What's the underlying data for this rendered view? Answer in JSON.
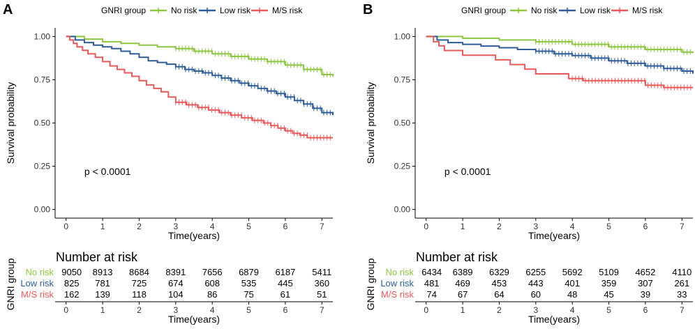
{
  "colors": {
    "no_risk": "#8CC63F",
    "low_risk": "#2E5C99",
    "ms_risk": "#E8595A",
    "axis": "#000000"
  },
  "chart_data": [
    {
      "type": "line",
      "panel_label": "A",
      "title": "",
      "xlabel": "Time(years)",
      "ylabel": "Survival probability",
      "xlim": [
        -0.3,
        7.3
      ],
      "ylim": [
        -0.05,
        1.05
      ],
      "x_ticks": [
        "0",
        "1",
        "2",
        "3",
        "4",
        "5",
        "6",
        "7"
      ],
      "y_ticks": [
        "0.00",
        "0.25",
        "0.50",
        "0.75",
        "1.00"
      ],
      "legend": {
        "title": "GNRI group",
        "placement": "top",
        "items": [
          "No risk",
          "Low risk",
          "M/S risk"
        ]
      },
      "annotation": "p < 0.0001",
      "series": [
        {
          "name": "No risk",
          "color_key": "no_risk",
          "x": [
            0,
            0.5,
            1,
            1.5,
            2,
            2.5,
            3,
            3.5,
            4,
            4.5,
            5,
            5.5,
            6,
            6.5,
            7,
            7.3
          ],
          "y": [
            1.0,
            0.985,
            0.97,
            0.96,
            0.95,
            0.94,
            0.93,
            0.915,
            0.9,
            0.885,
            0.87,
            0.855,
            0.835,
            0.81,
            0.78,
            0.77
          ],
          "censor_from": 3
        },
        {
          "name": "Low risk",
          "color_key": "low_risk",
          "x": [
            0,
            0.25,
            0.5,
            0.75,
            1,
            1.25,
            1.5,
            1.75,
            2,
            2.25,
            2.5,
            2.75,
            3,
            3.25,
            3.5,
            3.75,
            4,
            4.25,
            4.5,
            4.75,
            5,
            5.25,
            5.5,
            5.75,
            6,
            6.25,
            6.5,
            6.75,
            7,
            7.3
          ],
          "y": [
            1.0,
            0.98,
            0.965,
            0.95,
            0.94,
            0.93,
            0.915,
            0.9,
            0.88,
            0.86,
            0.85,
            0.84,
            0.825,
            0.81,
            0.8,
            0.79,
            0.775,
            0.76,
            0.745,
            0.73,
            0.715,
            0.7,
            0.685,
            0.67,
            0.65,
            0.63,
            0.61,
            0.585,
            0.56,
            0.545
          ],
          "censor_from": 3
        },
        {
          "name": "M/S risk",
          "color_key": "ms_risk",
          "x": [
            0,
            0.1,
            0.2,
            0.3,
            0.45,
            0.6,
            0.8,
            1.0,
            1.2,
            1.4,
            1.6,
            1.8,
            2.0,
            2.2,
            2.4,
            2.6,
            2.8,
            3.0,
            3.3,
            3.6,
            3.9,
            4.2,
            4.5,
            4.8,
            5.1,
            5.4,
            5.6,
            5.8,
            6.0,
            6.2,
            6.4,
            6.6,
            7.0,
            7.3
          ],
          "y": [
            1.0,
            0.98,
            0.96,
            0.94,
            0.92,
            0.9,
            0.88,
            0.855,
            0.83,
            0.81,
            0.79,
            0.77,
            0.745,
            0.72,
            0.7,
            0.68,
            0.65,
            0.62,
            0.605,
            0.59,
            0.575,
            0.56,
            0.545,
            0.53,
            0.515,
            0.5,
            0.485,
            0.47,
            0.455,
            0.44,
            0.43,
            0.415,
            0.415,
            0.415
          ],
          "censor_from": 3
        }
      ],
      "risk_table": {
        "title": "Number at risk",
        "group_label": "GNRI group",
        "xlabel": "Time(years)",
        "rows": [
          {
            "name": "No risk",
            "color_key": "no_risk",
            "values": [
              "9050",
              "8913",
              "8684",
              "8391",
              "7656",
              "6879",
              "6187",
              "5411"
            ]
          },
          {
            "name": "Low risk",
            "color_key": "low_risk",
            "values": [
              "825",
              "781",
              "725",
              "674",
              "608",
              "535",
              "445",
              "360"
            ]
          },
          {
            "name": "M/S risk",
            "color_key": "ms_risk",
            "values": [
              "162",
              "139",
              "118",
              "104",
              "86",
              "75",
              "61",
              "51"
            ]
          }
        ]
      }
    },
    {
      "type": "line",
      "panel_label": "B",
      "title": "",
      "xlabel": "Time(years)",
      "ylabel": "Survival probability",
      "xlim": [
        -0.3,
        7.3
      ],
      "ylim": [
        -0.05,
        1.05
      ],
      "x_ticks": [
        "0",
        "1",
        "2",
        "3",
        "4",
        "5",
        "6",
        "7"
      ],
      "y_ticks": [
        "0.00",
        "0.25",
        "0.50",
        "0.75",
        "1.00"
      ],
      "legend": {
        "title": "GNRI group",
        "placement": "top",
        "items": [
          "No risk",
          "Low risk",
          "M/S risk"
        ]
      },
      "annotation": "p < 0.0001",
      "series": [
        {
          "name": "No risk",
          "color_key": "no_risk",
          "x": [
            0,
            1,
            2,
            3,
            4,
            5,
            6,
            7,
            7.3
          ],
          "y": [
            1.0,
            0.99,
            0.98,
            0.97,
            0.955,
            0.94,
            0.925,
            0.91,
            0.905
          ],
          "censor_from": 3
        },
        {
          "name": "Low risk",
          "color_key": "low_risk",
          "x": [
            0,
            0.3,
            0.6,
            1.0,
            1.5,
            2.0,
            2.5,
            3.0,
            3.5,
            4.0,
            4.5,
            5.0,
            5.5,
            6.0,
            6.5,
            7.0,
            7.3
          ],
          "y": [
            1.0,
            0.98,
            0.965,
            0.955,
            0.945,
            0.935,
            0.925,
            0.915,
            0.9,
            0.89,
            0.875,
            0.86,
            0.845,
            0.83,
            0.815,
            0.8,
            0.785
          ],
          "censor_from": 3
        },
        {
          "name": "M/S risk",
          "color_key": "ms_risk",
          "x": [
            0,
            0.2,
            0.35,
            0.5,
            1.0,
            1.5,
            1.9,
            2.3,
            2.7,
            3.0,
            3.5,
            3.9,
            4.3,
            5.0,
            5.5,
            6.0,
            6.5,
            7.3
          ],
          "y": [
            1.0,
            0.97,
            0.946,
            0.919,
            0.892,
            0.892,
            0.865,
            0.838,
            0.811,
            0.784,
            0.784,
            0.757,
            0.745,
            0.745,
            0.745,
            0.718,
            0.705,
            0.705
          ],
          "censor_from": 4
        }
      ],
      "risk_table": {
        "title": "Number at risk",
        "group_label": "GNRI group",
        "xlabel": "Time(years)",
        "rows": [
          {
            "name": "No risk",
            "color_key": "no_risk",
            "values": [
              "6434",
              "6389",
              "6329",
              "6255",
              "5692",
              "5109",
              "4652",
              "4110"
            ]
          },
          {
            "name": "Low risk",
            "color_key": "low_risk",
            "values": [
              "481",
              "469",
              "453",
              "443",
              "401",
              "359",
              "307",
              "261"
            ]
          },
          {
            "name": "M/S risk",
            "color_key": "ms_risk",
            "values": [
              "74",
              "67",
              "64",
              "60",
              "48",
              "45",
              "39",
              "33"
            ]
          }
        ]
      }
    }
  ]
}
